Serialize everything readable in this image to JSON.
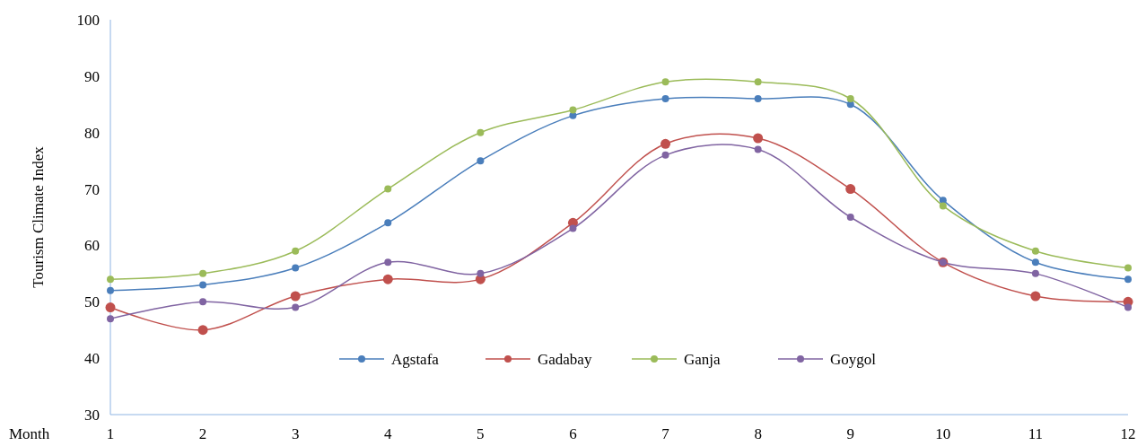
{
  "chart_data": {
    "type": "line",
    "xlabel": "Month",
    "ylabel": "Tourism Climate Index",
    "x": [
      1,
      2,
      3,
      4,
      5,
      6,
      7,
      8,
      9,
      10,
      11,
      12
    ],
    "xlim": [
      1,
      12
    ],
    "xticks": [
      1,
      2,
      3,
      4,
      5,
      6,
      7,
      8,
      9,
      10,
      11,
      12
    ],
    "series": [
      {
        "name": "Agstafa",
        "color": "#4a7ebb",
        "values": [
          52,
          53,
          56,
          64,
          75,
          83,
          86,
          86,
          85,
          68,
          57,
          54
        ]
      },
      {
        "name": "Gadabay",
        "color": "#c0504d",
        "values": [
          49,
          45,
          51,
          54,
          54,
          64,
          78,
          79,
          70,
          57,
          51,
          50
        ]
      },
      {
        "name": "Ganja",
        "color": "#9bbb59",
        "values": [
          54,
          55,
          59,
          70,
          80,
          84,
          89,
          89,
          86,
          67,
          59,
          56
        ]
      },
      {
        "name": "Goygol",
        "color": "#8064a2",
        "values": [
          47,
          50,
          49,
          57,
          55,
          63,
          76,
          77,
          65,
          57,
          55,
          49
        ]
      }
    ],
    "ylim": [
      30,
      100
    ],
    "yticks": [
      30,
      40,
      50,
      60,
      70,
      80,
      90,
      100
    ],
    "grid": false,
    "legend": "bottom",
    "marker": "circle",
    "line_style": "solid"
  }
}
